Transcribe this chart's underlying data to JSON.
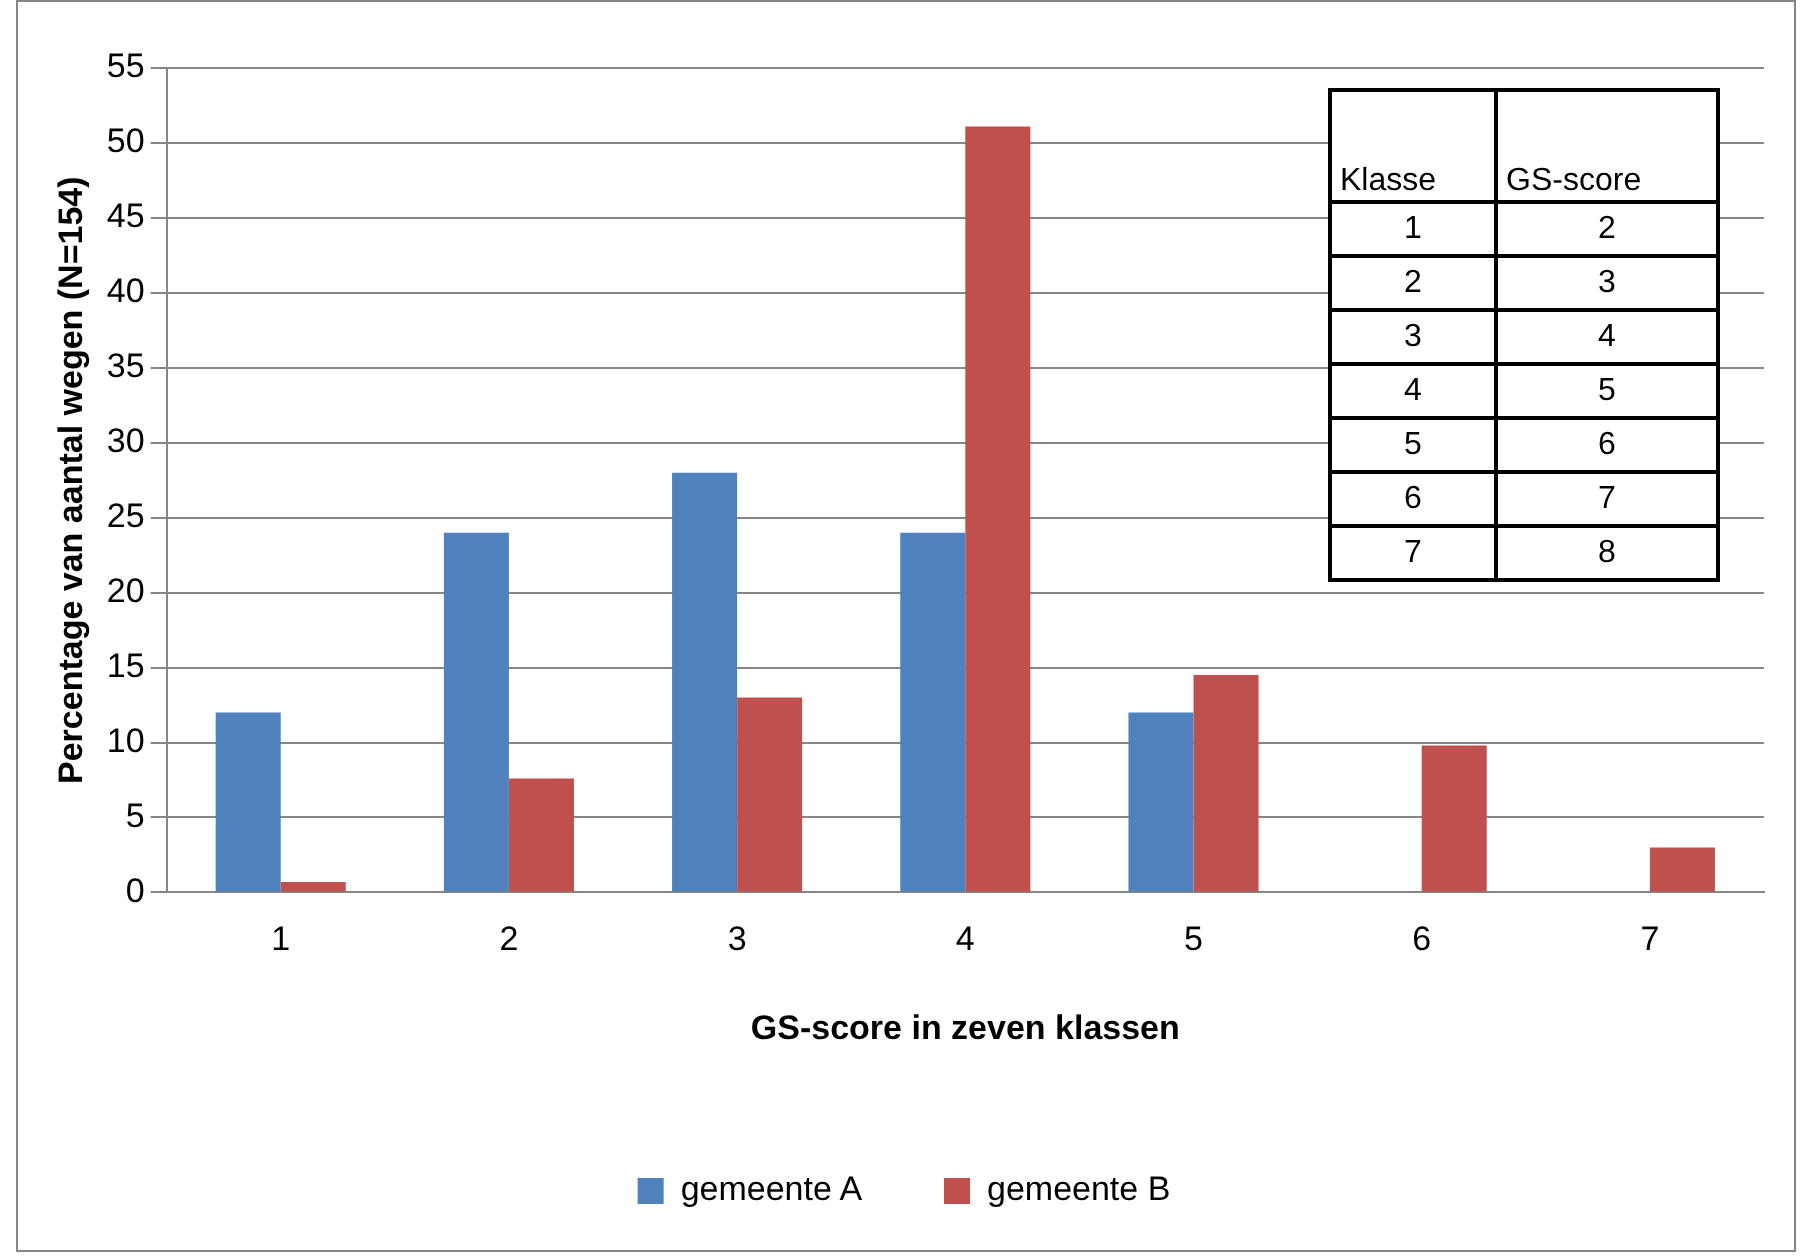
{
  "chart_data": {
    "type": "bar",
    "xlabel": "GS-score in zeven klassen",
    "ylabel": "Percentage van aantal wegen (N=154)",
    "categories": [
      "1",
      "2",
      "3",
      "4",
      "5",
      "6",
      "7"
    ],
    "series": [
      {
        "name": "gemeente A",
        "color": "#4f81bd",
        "values": [
          12,
          24,
          28,
          24,
          12,
          0,
          0
        ]
      },
      {
        "name": "gemeente B",
        "color": "#c0504d",
        "values": [
          0.7,
          7.6,
          13,
          51.1,
          14.5,
          9.8,
          3.0
        ]
      }
    ],
    "ylim": [
      0,
      55
    ],
    "yticks": [
      0,
      5,
      10,
      15,
      20,
      25,
      30,
      35,
      40,
      45,
      50,
      55
    ],
    "grid": "y",
    "legend": "bottom",
    "annotations": [
      "Klasse",
      "GS-score",
      "1",
      "2",
      "2",
      "3",
      "3",
      "4",
      "4",
      "5",
      "5",
      "6",
      "6",
      "7",
      "7",
      "8"
    ]
  }
}
